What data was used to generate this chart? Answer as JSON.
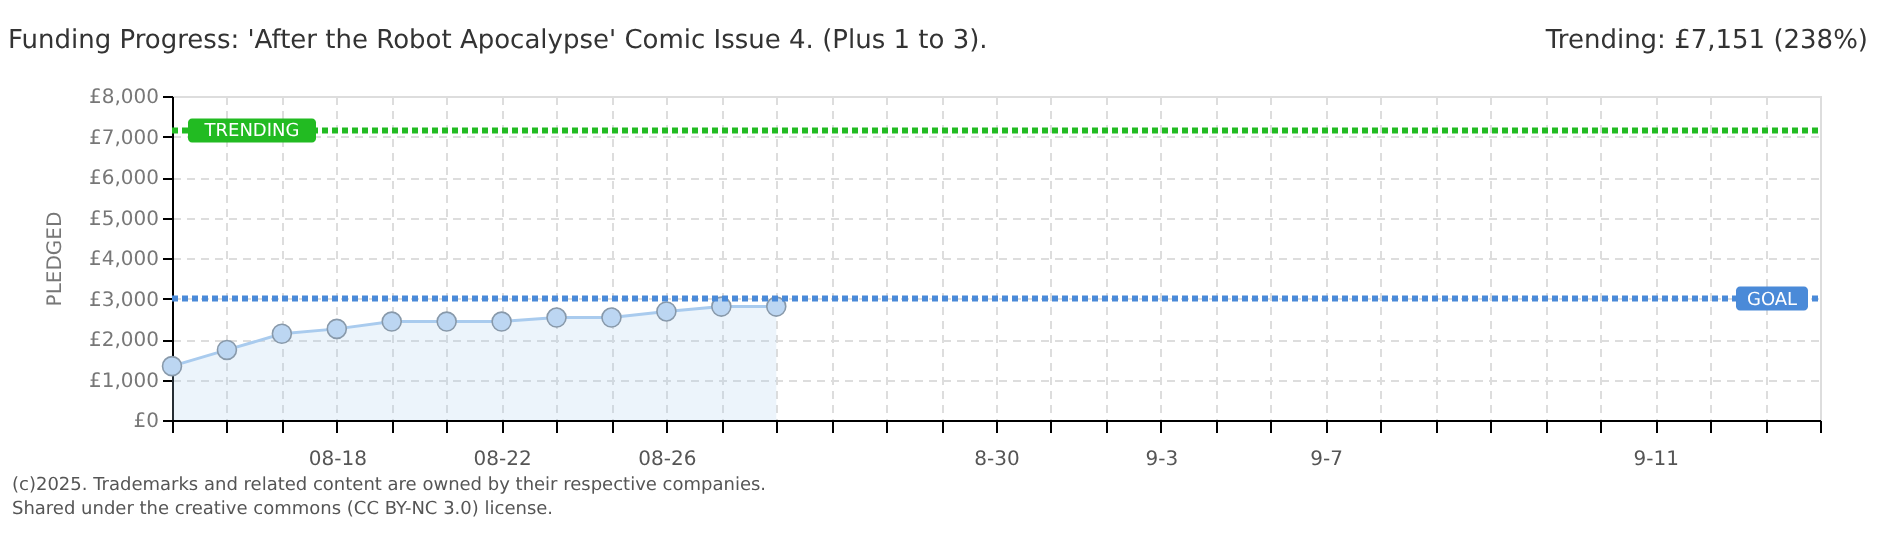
{
  "chart_data": {
    "type": "area",
    "title": "Funding Progress: 'After the Robot Apocalypse' Comic Issue 4. (Plus 1 to 3).",
    "ylabel": "PLEDGED",
    "annotations": [
      "Trending:  £7,151 (238%)",
      "(c)2025. Trademarks and related content are owned by their respective companies.",
      "Shared under the creative commons (CC BY-NC 3.0) license."
    ],
    "categories": [
      null,
      null,
      null,
      "08-18",
      null,
      null,
      "08-22",
      null,
      null,
      "08-26",
      null,
      null,
      null,
      null,
      null,
      "8-30",
      null,
      null,
      "9-3",
      null,
      null,
      "9-7",
      null,
      null,
      null,
      null,
      null,
      "9-11",
      null,
      null,
      null
    ],
    "series": [
      {
        "color": "#a9cbee",
        "values": [
          1330,
          1730,
          2130,
          2250,
          2430,
          2430,
          2430,
          2530,
          2530,
          2680,
          2800,
          2800,
          null,
          null,
          null,
          null,
          null,
          null,
          null,
          null,
          null,
          null,
          null,
          null,
          null,
          null,
          null,
          null,
          null,
          null,
          null
        ]
      }
    ],
    "ylim": [
      0,
      8000
    ],
    "yticks": [
      {
        "value": 0,
        "label": "£0"
      },
      {
        "value": 1000,
        "label": "£1,000"
      },
      {
        "value": 2000,
        "label": "£2,000"
      },
      {
        "value": 3000,
        "label": "£3,000"
      },
      {
        "value": 4000,
        "label": "£4,000"
      },
      {
        "value": 5000,
        "label": "£5,000"
      },
      {
        "value": 6000,
        "label": "£6,000"
      },
      {
        "value": 7000,
        "label": "£7,000"
      },
      {
        "value": 8000,
        "label": "£8,000"
      }
    ],
    "ref_lines": [
      {
        "axis": "y",
        "value": 7151,
        "label": "TRENDING",
        "color": "#22bb22",
        "line_style": "dotted"
      },
      {
        "axis": "y",
        "value": 3000,
        "label": "GOAL",
        "color": "#4a8ad8",
        "line_style": "dotted"
      }
    ],
    "grid": true,
    "marker": "circle",
    "line_style": "solid"
  }
}
